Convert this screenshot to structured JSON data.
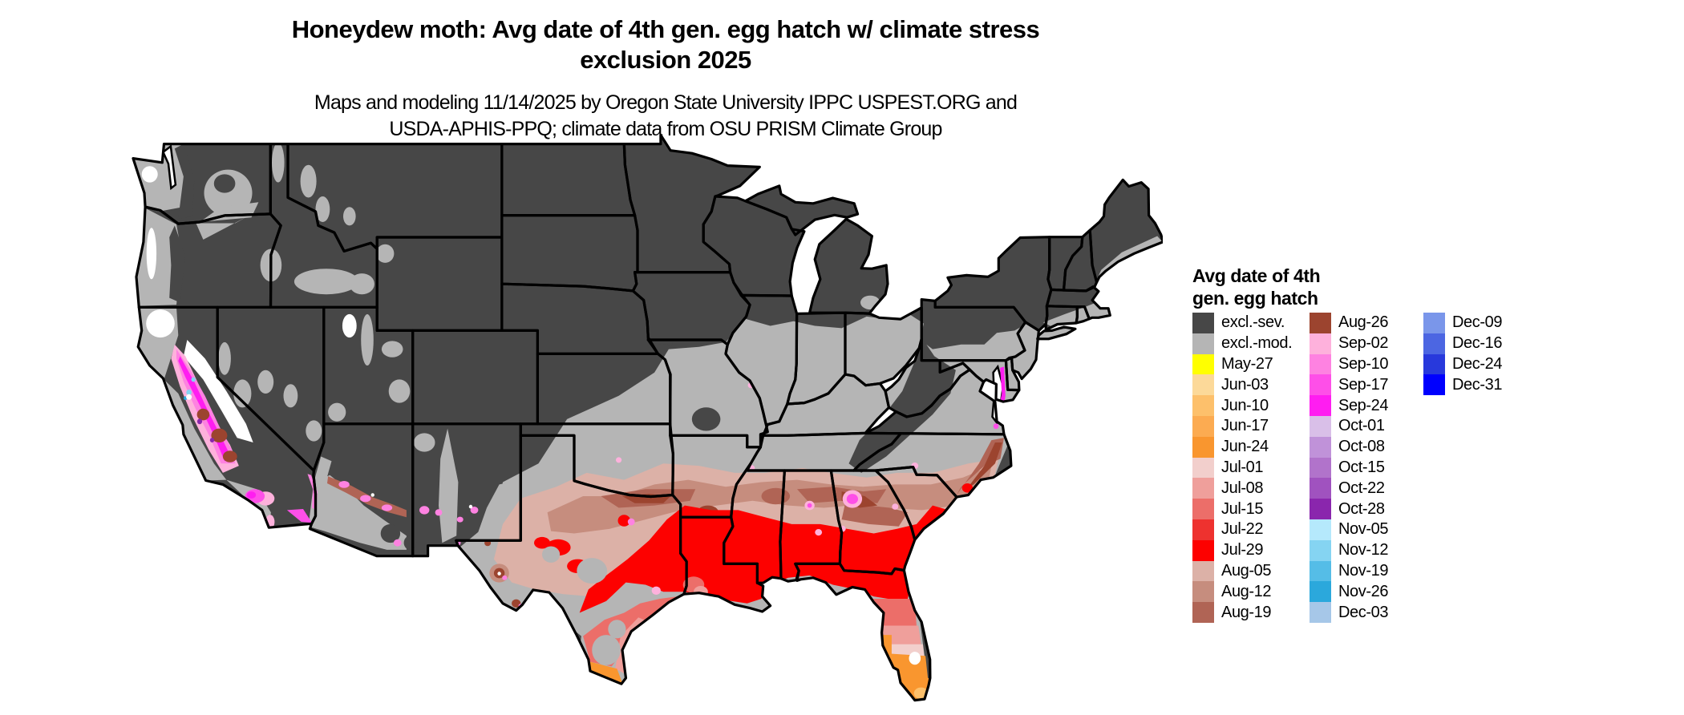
{
  "header": {
    "title_line1": "Honeydew moth: Avg date of 4th gen. egg hatch w/ climate stress",
    "title_line2": "exclusion 2025",
    "subtitle_line1": "Maps and modeling 11/14/2025 by Oregon State University IPPC USPEST.ORG and",
    "subtitle_line2": "USDA-APHIS-PPQ; climate data from OSU PRISM Climate Group"
  },
  "legend": {
    "title_line1": "Avg date of 4th",
    "title_line2": "gen. egg hatch",
    "columns": [
      [
        {
          "label": "excl.-sev.",
          "color": "#474747"
        },
        {
          "label": "excl.-mod.",
          "color": "#b5b5b5"
        },
        {
          "label": "May-27",
          "color": "#ffff00"
        },
        {
          "label": "Jun-03",
          "color": "#fcd999"
        },
        {
          "label": "Jun-10",
          "color": "#fdc06b"
        },
        {
          "label": "Jun-17",
          "color": "#fcab51"
        },
        {
          "label": "Jun-24",
          "color": "#f9962f"
        },
        {
          "label": "Jul-01",
          "color": "#f2cfcc"
        },
        {
          "label": "Jul-08",
          "color": "#ef9f9b"
        },
        {
          "label": "Jul-15",
          "color": "#ec6e69"
        },
        {
          "label": "Jul-22",
          "color": "#ee322f"
        },
        {
          "label": "Jul-29",
          "color": "#fd0100"
        },
        {
          "label": "Aug-05",
          "color": "#dcb1a7"
        },
        {
          "label": "Aug-12",
          "color": "#c68d7e"
        },
        {
          "label": "Aug-19",
          "color": "#b06455"
        }
      ],
      [
        {
          "label": "Aug-26",
          "color": "#9c442f"
        },
        {
          "label": "Sep-02",
          "color": "#feb1dc"
        },
        {
          "label": "Sep-10",
          "color": "#fe82e1"
        },
        {
          "label": "Sep-17",
          "color": "#fe4fe8"
        },
        {
          "label": "Sep-24",
          "color": "#ff1df1"
        },
        {
          "label": "Oct-01",
          "color": "#d9bfe8"
        },
        {
          "label": "Oct-08",
          "color": "#c092d9"
        },
        {
          "label": "Oct-15",
          "color": "#b173cb"
        },
        {
          "label": "Oct-22",
          "color": "#a052bf"
        },
        {
          "label": "Oct-28",
          "color": "#8a26ad"
        },
        {
          "label": "Nov-05",
          "color": "#b5e9fc"
        },
        {
          "label": "Nov-12",
          "color": "#85d4f2"
        },
        {
          "label": "Nov-19",
          "color": "#55bde7"
        },
        {
          "label": "Nov-26",
          "color": "#2ba8dc"
        },
        {
          "label": "Dec-03",
          "color": "#a6c7e8"
        }
      ],
      [
        {
          "label": "Dec-09",
          "color": "#7a96ea"
        },
        {
          "label": "Dec-16",
          "color": "#4c66e2"
        },
        {
          "label": "Dec-24",
          "color": "#2839dc"
        },
        {
          "label": "Dec-31",
          "color": "#0000fe"
        }
      ]
    ]
  }
}
